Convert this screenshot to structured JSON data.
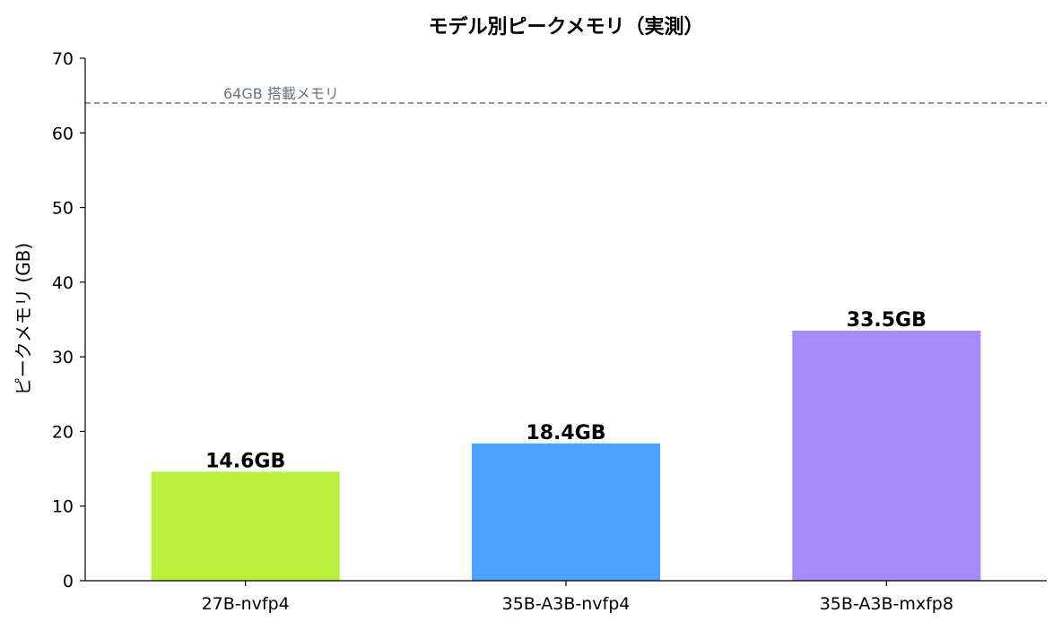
{
  "chart_data": {
    "type": "bar",
    "title": "モデル別ピークメモリ（実測）",
    "xlabel": "",
    "ylabel": "ピークメモリ (GB)",
    "ylim": [
      0,
      70
    ],
    "yticks": [
      0,
      10,
      20,
      30,
      40,
      50,
      60,
      70
    ],
    "categories": [
      "27B-nvfp4",
      "35B-A3B-nvfp4",
      "35B-A3B-mxfp8"
    ],
    "values": [
      14.6,
      18.4,
      33.5
    ],
    "data_labels": [
      "14.6GB",
      "18.4GB",
      "33.5GB"
    ],
    "bar_colors": [
      "#b8f03c",
      "#4ca3ff",
      "#a78bfa"
    ],
    "reference_line": {
      "value": 64,
      "label": "64GB 搭載メモリ",
      "color": "#6b7280",
      "style": "dashed"
    },
    "grid": false,
    "legend": "none"
  }
}
